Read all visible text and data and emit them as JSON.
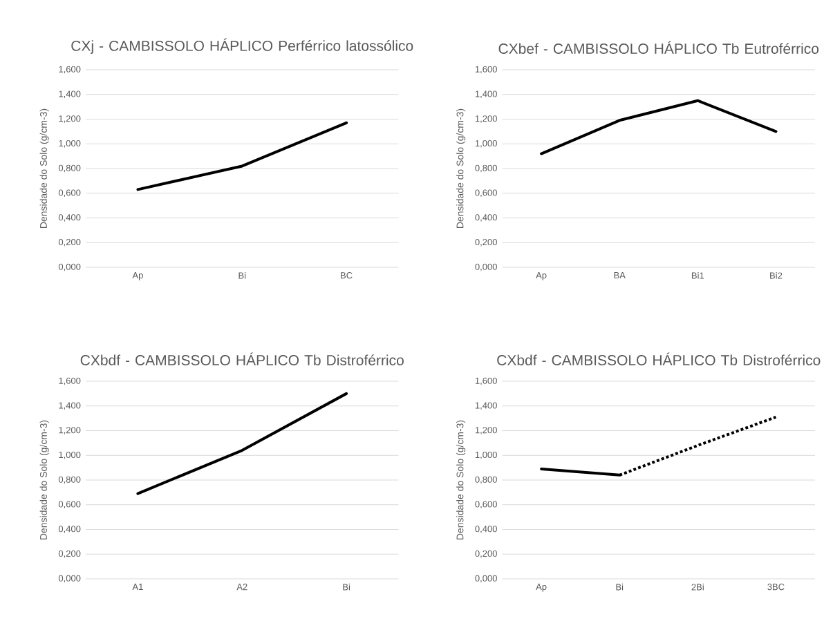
{
  "chart_data": [
    {
      "type": "line",
      "title": "CXj - CAMBISSOLO HÁPLICO Perférrico latossólico",
      "ylabel": "Densidade do Solo (g/cm-3)",
      "categories": [
        "Ap",
        "Bi",
        "BC"
      ],
      "ylim": [
        0,
        1.6
      ],
      "yticks": [
        {
          "value": 0,
          "label": "0,000"
        },
        {
          "value": 0.2,
          "label": "0,200"
        },
        {
          "value": 0.4,
          "label": "0,400"
        },
        {
          "value": 0.6,
          "label": "0,600"
        },
        {
          "value": 0.8,
          "label": "0,800"
        },
        {
          "value": 1.0,
          "label": "1,000"
        },
        {
          "value": 1.2,
          "label": "1,200"
        },
        {
          "value": 1.4,
          "label": "1,400"
        },
        {
          "value": 1.6,
          "label": "1,600"
        }
      ],
      "grid": "y",
      "marker": "none",
      "series": [
        {
          "color": "#000000",
          "line_style": "solid",
          "values": [
            0.63,
            0.82,
            1.17
          ]
        }
      ]
    },
    {
      "type": "line",
      "title": "CXbef - CAMBISSOLO HÁPLICO Tb Eutroférrico",
      "ylabel": "Densidade do Solo (g/cm-3)",
      "categories": [
        "Ap",
        "BA",
        "Bi1",
        "Bi2"
      ],
      "ylim": [
        0,
        1.6
      ],
      "yticks": [
        {
          "value": 0,
          "label": "0,000"
        },
        {
          "value": 0.2,
          "label": "0,200"
        },
        {
          "value": 0.4,
          "label": "0,400"
        },
        {
          "value": 0.6,
          "label": "0,600"
        },
        {
          "value": 0.8,
          "label": "0,800"
        },
        {
          "value": 1.0,
          "label": "1,000"
        },
        {
          "value": 1.2,
          "label": "1,200"
        },
        {
          "value": 1.4,
          "label": "1,400"
        },
        {
          "value": 1.6,
          "label": "1,600"
        }
      ],
      "grid": "y",
      "marker": "none",
      "series": [
        {
          "color": "#000000",
          "line_style": "solid",
          "values": [
            0.92,
            1.19,
            1.35,
            1.1
          ]
        }
      ]
    },
    {
      "type": "line",
      "title": "CXbdf - CAMBISSOLO HÁPLICO Tb Distroférrico",
      "ylabel": "Densidade do Solo (g/cm-3)",
      "categories": [
        "A1",
        "A2",
        "Bi"
      ],
      "ylim": [
        0,
        1.6
      ],
      "yticks": [
        {
          "value": 0,
          "label": "0,000"
        },
        {
          "value": 0.2,
          "label": "0,200"
        },
        {
          "value": 0.4,
          "label": "0,400"
        },
        {
          "value": 0.6,
          "label": "0,600"
        },
        {
          "value": 0.8,
          "label": "0,800"
        },
        {
          "value": 1.0,
          "label": "1,000"
        },
        {
          "value": 1.2,
          "label": "1,200"
        },
        {
          "value": 1.4,
          "label": "1,400"
        },
        {
          "value": 1.6,
          "label": "1,600"
        }
      ],
      "grid": "y",
      "marker": "none",
      "series": [
        {
          "color": "#000000",
          "line_style": "solid",
          "values": [
            0.69,
            1.04,
            1.5
          ]
        }
      ]
    },
    {
      "type": "line",
      "title": "CXbdf - CAMBISSOLO HÁPLICO Tb Distroférrico",
      "ylabel": "Densidade do Solo (g/cm-3)",
      "categories": [
        "Ap",
        "Bi",
        "2Bi",
        "3BC"
      ],
      "ylim": [
        0,
        1.6
      ],
      "yticks": [
        {
          "value": 0,
          "label": "0,000"
        },
        {
          "value": 0.2,
          "label": "0,200"
        },
        {
          "value": 0.4,
          "label": "0,400"
        },
        {
          "value": 0.6,
          "label": "0,600"
        },
        {
          "value": 0.8,
          "label": "0,800"
        },
        {
          "value": 1.0,
          "label": "1,000"
        },
        {
          "value": 1.2,
          "label": "1,200"
        },
        {
          "value": 1.4,
          "label": "1,400"
        },
        {
          "value": 1.6,
          "label": "1,600"
        }
      ],
      "grid": "y",
      "marker": "none",
      "series": [
        {
          "color": "#000000",
          "line_style": "solid",
          "values": [
            0.89,
            0.84,
            null,
            null
          ]
        },
        {
          "color": "#000000",
          "line_style": "dotted",
          "values": [
            null,
            0.84,
            1.08,
            1.31
          ]
        }
      ]
    }
  ]
}
